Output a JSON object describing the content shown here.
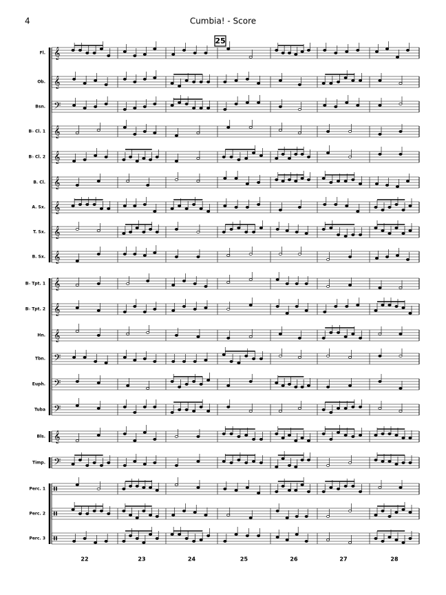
{
  "header": {
    "page_number": "4",
    "title": "Cumbia! - Score"
  },
  "rehearsal_mark": "25",
  "instruments": [
    "Fl.",
    "Ob.",
    "Bsn.",
    "B♭ Cl. 1",
    "B♭ Cl. 2",
    "B. Cl.",
    "A. Sx.",
    "T. Sx.",
    "B. Sx.",
    "B♭ Tpt. 1",
    "B♭ Tpt. 2",
    "Hn.",
    "Tbn.",
    "Euph.",
    "Tuba",
    "Bls.",
    "Timp.",
    "Perc. 1",
    "Perc. 2",
    "Perc. 3"
  ],
  "measure_numbers": [
    22,
    23,
    24,
    25,
    26,
    27,
    28
  ]
}
